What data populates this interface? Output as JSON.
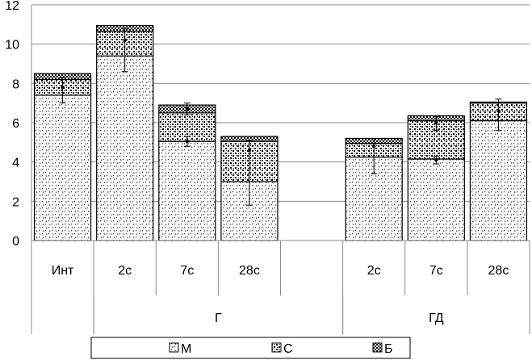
{
  "chart_data": {
    "type": "bar",
    "stacked": true,
    "title": "",
    "xlabel": "",
    "ylabel": "",
    "ylim": [
      0,
      12
    ],
    "y_ticks": [
      "0",
      "2",
      "4",
      "6",
      "8",
      "10",
      "12"
    ],
    "grid": true,
    "legend_position": "bottom",
    "categories": [
      "Инт",
      "2с",
      "7с",
      "28с",
      "",
      "2с",
      "7с",
      "28с"
    ],
    "groups": [
      {
        "label": "",
        "categories": [
          "Инт"
        ]
      },
      {
        "label": "Г",
        "categories": [
          "2с",
          "7с",
          "28с",
          ""
        ]
      },
      {
        "label": "ГД",
        "categories": [
          "2с",
          "7с",
          "28с"
        ]
      }
    ],
    "series": [
      {
        "name": "М",
        "values": [
          7.4,
          9.4,
          5.05,
          3.0,
          null,
          4.25,
          4.15,
          6.1
        ],
        "pattern": "dots"
      },
      {
        "name": "С",
        "values": [
          0.8,
          1.25,
          1.45,
          2.05,
          null,
          0.7,
          1.95,
          0.9
        ],
        "pattern": "speckle"
      },
      {
        "name": "Б",
        "values": [
          0.3,
          0.3,
          0.4,
          0.25,
          null,
          0.25,
          0.25,
          0.05
        ],
        "pattern": "checker"
      }
    ],
    "error_bars": [
      {
        "category_index": 0,
        "center": 7.8,
        "low": 7.0,
        "high": 8.3
      },
      {
        "category_index": 1,
        "center": 10.2,
        "low": 8.6,
        "high": 10.8
      },
      {
        "category_index": 2,
        "center": 5.05,
        "low": 4.8,
        "high": 5.3
      },
      {
        "category_index": 2,
        "center": 6.7,
        "low": 6.4,
        "high": 7.0
      },
      {
        "category_index": 3,
        "center": 4.6,
        "low": 1.8,
        "high": 5.1
      },
      {
        "category_index": 5,
        "center": 4.8,
        "low": 3.4,
        "high": 5.2
      },
      {
        "category_index": 6,
        "center": 4.1,
        "low": 3.9,
        "high": 4.3
      },
      {
        "category_index": 6,
        "center": 6.0,
        "low": 5.6,
        "high": 6.3
      },
      {
        "category_index": 7,
        "center": 6.6,
        "low": 5.6,
        "high": 7.2
      }
    ]
  }
}
